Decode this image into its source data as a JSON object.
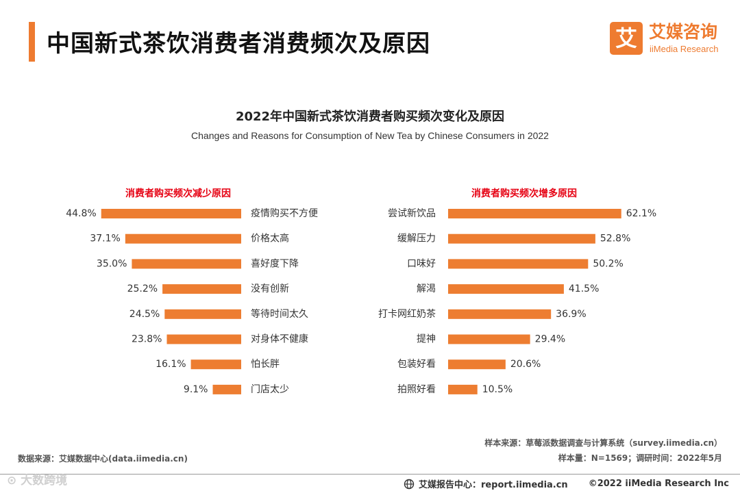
{
  "colors": {
    "accent": "#EE7B30",
    "bar": "#ED7D31",
    "subtitle_red": "#E60012"
  },
  "header": {
    "title": "中国新式茶饮消费者消费频次及原因"
  },
  "logo": {
    "mark": "艾",
    "cn": "艾媒咨询",
    "en": "iiMedia Research"
  },
  "chart_data": {
    "type": "bar",
    "title": "2022年中国新式茶饮消费者购买频次变化及原因",
    "subtitle": "Changes and Reasons for Consumption of New Tea by Chinese Consumers in 2022",
    "unit": "%",
    "panels": [
      {
        "name": "消费者购买频次减少原因",
        "orientation": "horizontal-leftward",
        "categories": [
          "疫情购买不方便",
          "价格太高",
          "喜好度下降",
          "没有创新",
          "等待时间太久",
          "对身体不健康",
          "怕长胖",
          "门店太少"
        ],
        "values": [
          44.8,
          37.1,
          35.0,
          25.2,
          24.5,
          23.8,
          16.1,
          9.1
        ],
        "labels": [
          "44.8%",
          "37.1%",
          "35.0%",
          "25.2%",
          "24.5%",
          "23.8%",
          "16.1%",
          "9.1%"
        ]
      },
      {
        "name": "消费者购买频次增多原因",
        "orientation": "horizontal-rightward",
        "categories": [
          "尝试新饮品",
          "缓解压力",
          "口味好",
          "解渴",
          "打卡网红奶茶",
          "提神",
          "包装好看",
          "拍照好看"
        ],
        "values": [
          62.1,
          52.8,
          50.2,
          41.5,
          36.9,
          29.4,
          20.6,
          10.5
        ],
        "labels": [
          "62.1%",
          "52.8%",
          "50.2%",
          "41.5%",
          "36.9%",
          "29.4%",
          "20.6%",
          "10.5%"
        ]
      }
    ]
  },
  "footer": {
    "sample_source": "样本来源：草莓派数据调查与计算系统（survey.iimedia.cn）",
    "sample_size": "样本量：N=1569；调研时间：2022年5月",
    "data_source": "数据来源：艾媒数据中心(data.iimedia.cn)",
    "watermark": "⊙ 大数跨境",
    "report_center": "艾媒报告中心：report.iimedia.cn",
    "copyright": "©2022  iiMedia Research  Inc"
  }
}
